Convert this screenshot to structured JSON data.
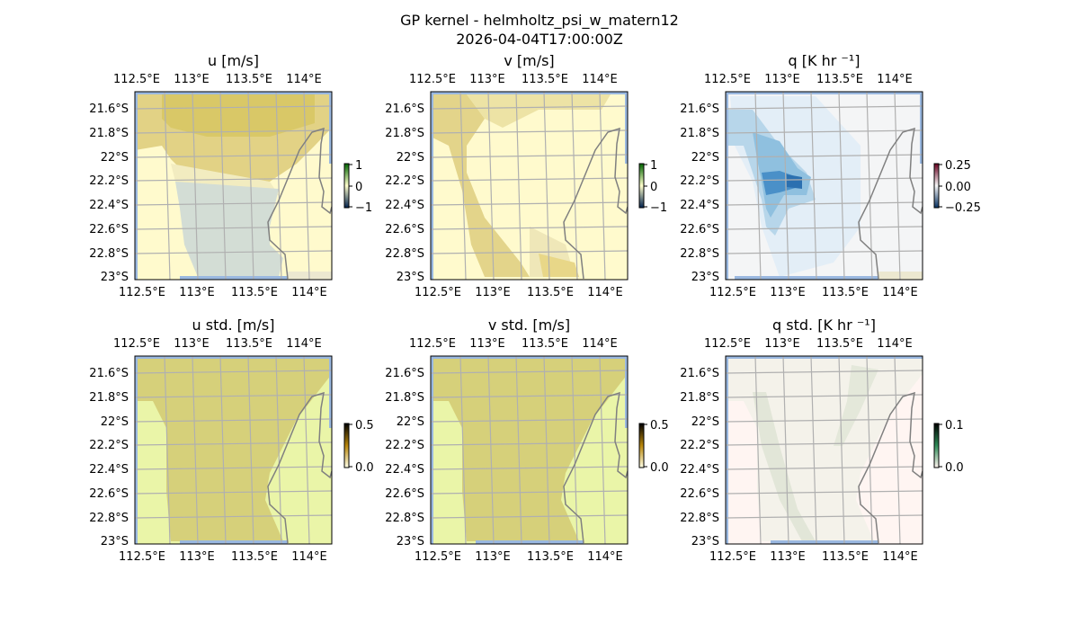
{
  "chart_data": {
    "type": "heatmap",
    "title": "GP kernel - helmholtz_psi_w_matern12",
    "subtitle": "2026-04-04T17:00:00Z",
    "lon_ticks": [
      "112.5°E",
      "113°E",
      "113.5°E",
      "114°E"
    ],
    "lat_ticks": [
      "21.6°S",
      "21.8°S",
      "22°S",
      "22.2°S",
      "22.4°S",
      "22.6°S",
      "22.8°S",
      "23°S"
    ],
    "panels": [
      {
        "title": "u [m/s]",
        "kind": "u",
        "colorbar_ticks": [
          "1",
          "0",
          "−1"
        ],
        "cmap": [
          "#00204c",
          "#ffffcc",
          "#006400"
        ]
      },
      {
        "title": "v [m/s]",
        "kind": "v",
        "colorbar_ticks": [
          "1",
          "0",
          "−1"
        ],
        "cmap": [
          "#00204c",
          "#ffffcc",
          "#006400"
        ]
      },
      {
        "title": "q [K hr ⁻¹]",
        "kind": "q",
        "colorbar_ticks": [
          "0.25",
          "0.00",
          "−0.25"
        ],
        "cmap": [
          "#053061",
          "#f7f7f7",
          "#67001f"
        ]
      },
      {
        "title": "u std. [m/s]",
        "kind": "ustd",
        "colorbar_ticks": [
          "0.5",
          "0.0"
        ],
        "cmap": [
          "#ffffe5",
          "#b8860b",
          "#000000"
        ]
      },
      {
        "title": "v std. [m/s]",
        "kind": "vstd",
        "colorbar_ticks": [
          "0.5",
          "0.0"
        ],
        "cmap": [
          "#ffffe5",
          "#b8860b",
          "#000000"
        ]
      },
      {
        "title": "q std. [K hr ⁻¹]",
        "kind": "qstd",
        "colorbar_ticks": [
          "0.1",
          "0.0"
        ],
        "cmap": [
          "#fff5f0",
          "#2e8b57",
          "#000000"
        ]
      }
    ]
  }
}
